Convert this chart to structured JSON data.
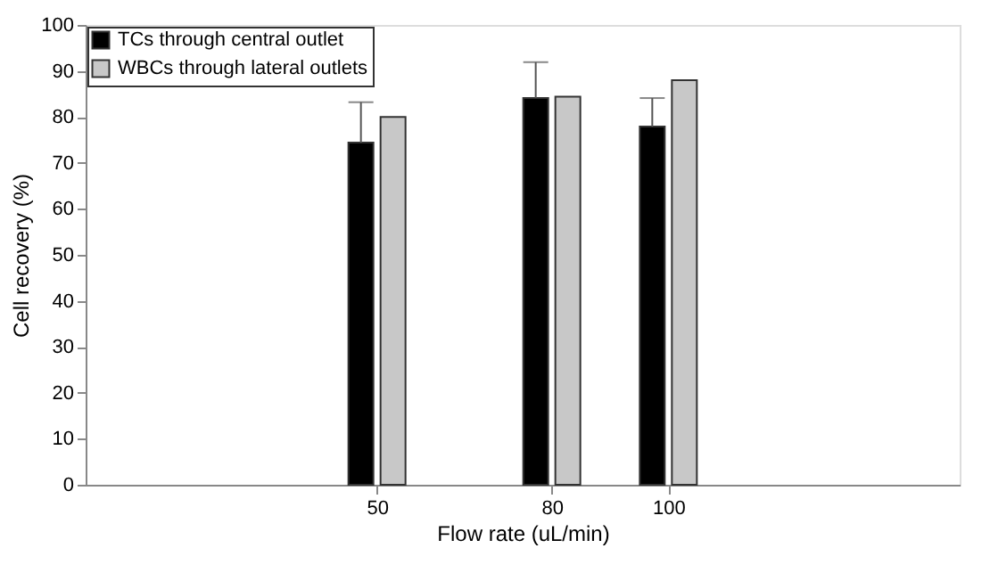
{
  "chart_data": {
    "type": "bar",
    "xlabel": "Flow rate (uL/min)",
    "ylabel": "Cell recovery (%)",
    "x": [
      50,
      80,
      100
    ],
    "series": [
      {
        "name": "TCs through central outlet",
        "color": "#000000",
        "values": [
          74.4,
          84.1,
          77.9
        ],
        "errors": [
          [
            74.4,
            83.2
          ],
          [
            84.1,
            91.9
          ],
          [
            77.9,
            84.1
          ]
        ]
      },
      {
        "name": "WBCs through lateral outlets",
        "color": "#c8c8c8",
        "values": [
          80.0,
          84.4,
          88.0
        ]
      }
    ],
    "xlim": [
      0,
      150
    ],
    "xticks": [
      50,
      80,
      100
    ],
    "ylim": [
      0,
      100
    ],
    "yticks": [
      0,
      10,
      20,
      30,
      40,
      50,
      60,
      70,
      80,
      90,
      100
    ],
    "grid": false,
    "legend": "top left"
  }
}
